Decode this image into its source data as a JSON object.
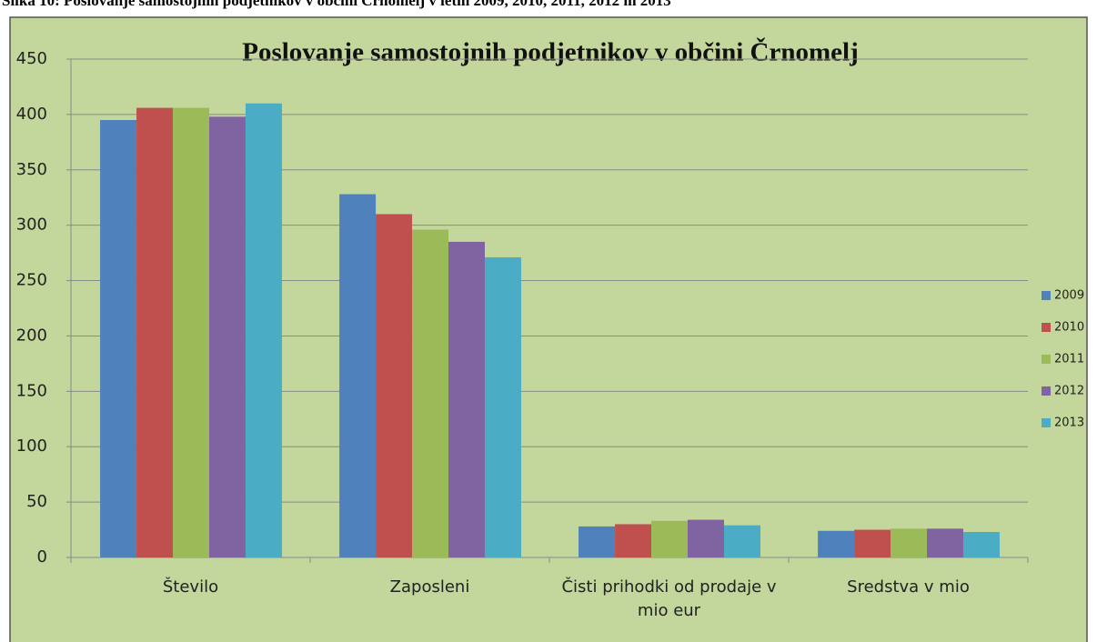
{
  "caption": "Slika 10: Poslovanje samostojnih podjetnikov v občini Črnomelj v letih 2009, 2010, 2011, 2012 in 2013",
  "chart_data": {
    "type": "bar",
    "title": "Poslovanje samostojnih podjetnikov v občini Črnomelj",
    "categories": [
      "Število",
      "Zaposleni",
      "Čisti prihodki od prodaje v mio eur",
      "Sredstva v mio"
    ],
    "series": [
      {
        "name": "2009",
        "color": "#4f81bd",
        "values": [
          395,
          328,
          28,
          24
        ]
      },
      {
        "name": "2010",
        "color": "#c0504d",
        "values": [
          406,
          310,
          30,
          25
        ]
      },
      {
        "name": "2011",
        "color": "#9bbb59",
        "values": [
          406,
          296,
          33,
          26
        ]
      },
      {
        "name": "2012",
        "color": "#8064a2",
        "values": [
          398,
          285,
          34,
          26
        ]
      },
      {
        "name": "2013",
        "color": "#4bacc6",
        "values": [
          410,
          271,
          29,
          23
        ]
      }
    ],
    "ylim": [
      0,
      450
    ],
    "yticks": [
      0,
      50,
      100,
      150,
      200,
      250,
      300,
      350,
      400,
      450
    ],
    "grid": true,
    "legend": "right"
  }
}
